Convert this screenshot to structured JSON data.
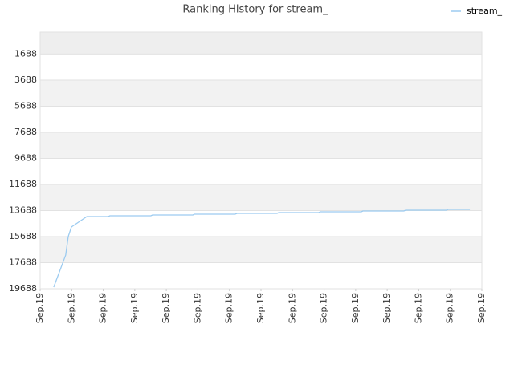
{
  "chart_data": {
    "type": "line",
    "title": "Ranking History for stream_",
    "xlim": [
      0,
      14
    ],
    "xticks": [
      {
        "value": 0,
        "label": "Sep.19"
      },
      {
        "value": 1,
        "label": "Sep.19"
      },
      {
        "value": 2,
        "label": "Sep.19"
      },
      {
        "value": 3,
        "label": "Sep.19"
      },
      {
        "value": 4,
        "label": "Sep.19"
      },
      {
        "value": 5,
        "label": "Sep.19"
      },
      {
        "value": 6,
        "label": "Sep.19"
      },
      {
        "value": 7,
        "label": "Sep.19"
      },
      {
        "value": 8,
        "label": "Sep.19"
      },
      {
        "value": 9,
        "label": "Sep.19"
      },
      {
        "value": 10,
        "label": "Sep.19"
      },
      {
        "value": 11,
        "label": "Sep.19"
      },
      {
        "value": 12,
        "label": "Sep.19"
      },
      {
        "value": 13,
        "label": "Sep.19"
      },
      {
        "value": 14,
        "label": "Sep.19"
      }
    ],
    "ylim": [
      19688,
      0
    ],
    "yticks": [
      1688,
      3688,
      5688,
      7688,
      9688,
      11688,
      13688,
      15688,
      17688,
      19688
    ],
    "grid": true,
    "legend": "top-right",
    "series": [
      {
        "name": "stream_",
        "color": "#9ccbf0",
        "x": [
          0.43,
          0.81,
          0.89,
          0.99,
          1.48,
          2.16,
          2.21,
          3.51,
          3.56,
          4.84,
          4.89,
          6.18,
          6.24,
          7.51,
          7.56,
          8.83,
          8.88,
          10.18,
          10.23,
          11.53,
          11.58,
          12.88,
          12.93,
          13.62
        ],
        "values": [
          19565,
          17104,
          15689,
          14951,
          14151,
          14151,
          14089,
          14089,
          14028,
          14028,
          13966,
          13966,
          13905,
          13905,
          13843,
          13843,
          13782,
          13782,
          13720,
          13720,
          13659,
          13659,
          13597,
          13597
        ]
      }
    ]
  }
}
